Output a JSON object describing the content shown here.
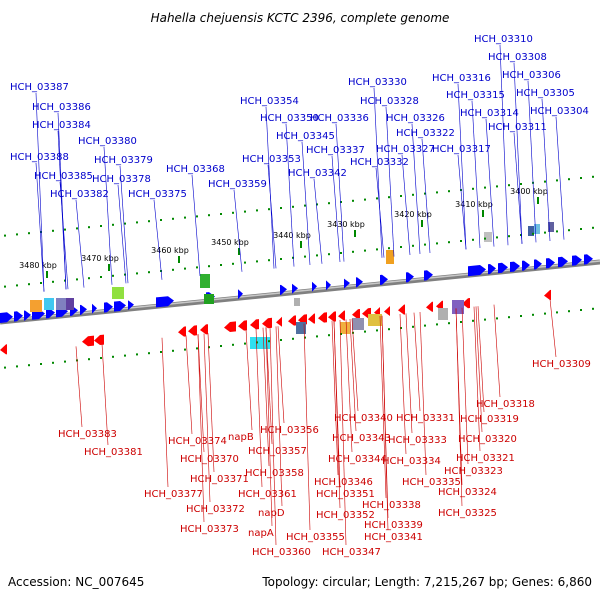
{
  "header": {
    "title": "Hahella chejuensis KCTC 2396, complete genome"
  },
  "footer": {
    "accession": "Accession: NC_007645",
    "summary": "Topology: circular; Length: 7,215,267 bp; Genes: 6,860"
  },
  "colors": {
    "forward_gene": "#0000ff",
    "reverse_gene": "#ff0000",
    "top_label": "#0000cc",
    "bottom_label": "#cc0000",
    "tick": "#008800",
    "backbone": "#808080"
  },
  "kbp_ticks": [
    "3480 kbp",
    "3470 kbp",
    "3460 kbp",
    "3450 kbp",
    "3440 kbp",
    "3430 kbp",
    "3420 kbp",
    "3410 kbp",
    "3400 kbp"
  ],
  "top_labels": [
    "HCH_03387",
    "HCH_03386",
    "HCH_03384",
    "HCH_03380",
    "HCH_03388",
    "HCH_03379",
    "HCH_03385",
    "HCH_03378",
    "HCH_03382",
    "HCH_03375",
    "HCH_03368",
    "HCH_03359",
    "HCH_03354",
    "HCH_03350",
    "HCH_03345",
    "HCH_03353",
    "HCH_03342",
    "HCH_03337",
    "HCH_03336",
    "HCH_03330",
    "HCH_03328",
    "HCH_03326",
    "HCH_03327",
    "HCH_03332",
    "HCH_03322",
    "HCH_03317",
    "HCH_03316",
    "HCH_03315",
    "HCH_03314",
    "HCH_03311",
    "HCH_03310",
    "HCH_03308",
    "HCH_03306",
    "HCH_03305",
    "HCH_03304"
  ],
  "bottom_labels": [
    "HCH_03383",
    "HCH_03381",
    "HCH_03374",
    "napB",
    "HCH_03370",
    "HCH_03371",
    "HCH_03377",
    "HCH_03372",
    "HCH_03373",
    "HCH_03361",
    "HCH_03358",
    "HCH_03357",
    "HCH_03356",
    "napD",
    "napA",
    "HCH_03360",
    "HCH_03355",
    "HCH_03352",
    "HCH_03351",
    "HCH_03346",
    "HCH_03347",
    "HCH_03344",
    "HCH_03343",
    "HCH_03341",
    "HCH_03340",
    "HCH_03339",
    "HCH_03338",
    "HCH_03335",
    "HCH_03334",
    "HCH_03333",
    "HCH_03331",
    "HCH_03325",
    "HCH_03324",
    "HCH_03323",
    "HCH_03321",
    "HCH_03320",
    "HCH_03319",
    "HCH_03318",
    "HCH_03309"
  ]
}
